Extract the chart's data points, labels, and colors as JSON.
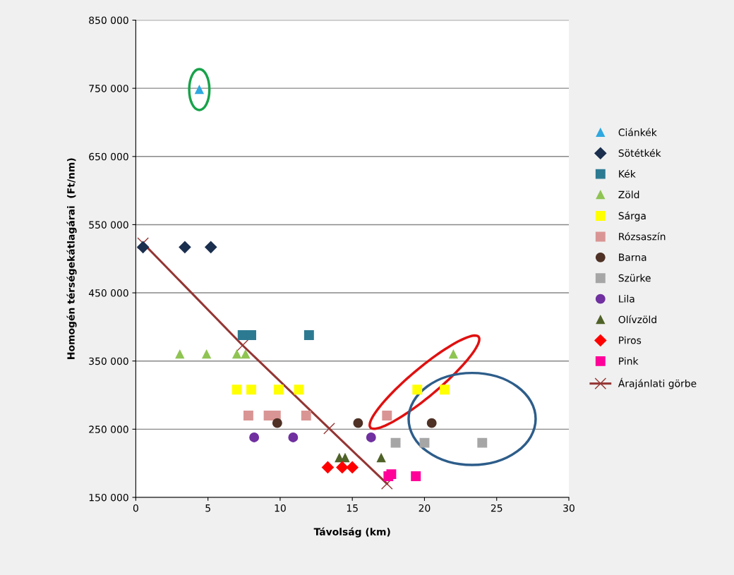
{
  "chart_data": {
    "type": "scatter",
    "xlabel": "Távolság (km)",
    "ylabel": "Homogén térségekátlagárai  (Ft/nm)",
    "xlim": [
      0,
      30
    ],
    "xticks": [
      0,
      5,
      10,
      15,
      20,
      25,
      30
    ],
    "ylim": [
      150000,
      850000
    ],
    "yticks": [
      {
        "value": 150000,
        "label": "150 000"
      },
      {
        "value": 250000,
        "label": "250 000"
      },
      {
        "value": 350000,
        "label": "350 000"
      },
      {
        "value": 450000,
        "label": "450 000"
      },
      {
        "value": 550000,
        "label": "550 000"
      },
      {
        "value": 650000,
        "label": "650 000"
      },
      {
        "value": 750000,
        "label": "750 000"
      },
      {
        "value": 850000,
        "label": "850 000"
      }
    ],
    "grid": "y",
    "legend": "right",
    "series": [
      {
        "name": "Ciánkék",
        "color": "#2ea8e0",
        "marker": "triangle",
        "x": [
          4.4
        ],
        "values": [
          748000
        ]
      },
      {
        "name": "Sötétkék",
        "color": "#1b2f4f",
        "marker": "diamond",
        "x": [
          0.5,
          3.4,
          5.2
        ],
        "values": [
          517000,
          517000,
          517000
        ]
      },
      {
        "name": "Kék",
        "color": "#2c7a92",
        "marker": "square",
        "x": [
          7.4,
          8.0,
          12.0
        ],
        "values": [
          388000,
          388000,
          388000
        ]
      },
      {
        "name": "Zöld",
        "color": "#8fc453",
        "marker": "triangle",
        "x": [
          3.05,
          4.9,
          7.0,
          7.6,
          22.0
        ],
        "values": [
          360000,
          360000,
          360000,
          360000,
          360000
        ]
      },
      {
        "name": "Sárga",
        "color": "#ffff00",
        "marker": "square",
        "x": [
          7.0,
          8.0,
          9.9,
          11.3,
          19.5,
          21.4
        ],
        "values": [
          308000,
          308000,
          308000,
          308000,
          308000,
          308000
        ]
      },
      {
        "name": "Rózsaszín",
        "color": "#d99594",
        "marker": "square",
        "x": [
          7.8,
          9.2,
          9.7,
          11.8,
          17.4
        ],
        "values": [
          270000,
          270000,
          270000,
          270000,
          270000
        ]
      },
      {
        "name": "Barna",
        "color": "#4f3126",
        "marker": "circle",
        "x": [
          9.8,
          15.4,
          20.5
        ],
        "values": [
          259000,
          259000,
          259000
        ]
      },
      {
        "name": "Szürke",
        "color": "#a6a6a6",
        "marker": "square",
        "x": [
          18.0,
          20.0,
          24.0
        ],
        "values": [
          230000,
          230000,
          230000
        ]
      },
      {
        "name": "Lila",
        "color": "#7030a0",
        "marker": "circle",
        "x": [
          8.2,
          10.9,
          16.3
        ],
        "values": [
          238000,
          238000,
          238000
        ]
      },
      {
        "name": "Olívzöld",
        "color": "#4f6228",
        "marker": "triangle",
        "x": [
          14.1,
          14.5,
          17.0
        ],
        "values": [
          208000,
          208000,
          208000
        ]
      },
      {
        "name": "Piros",
        "color": "#ff0000",
        "marker": "diamond",
        "x": [
          13.3,
          14.3,
          15.0
        ],
        "values": [
          194000,
          194000,
          194000
        ]
      },
      {
        "name": "Pink",
        "color": "#ff0099",
        "marker": "square",
        "x": [
          17.5,
          17.7,
          19.4
        ],
        "values": [
          181000,
          184000,
          181000
        ]
      },
      {
        "name": "Árajánlati görbe",
        "type": "line",
        "color": "#943634",
        "marker": "cross",
        "x": [
          0.5,
          7.4,
          13.4,
          17.4
        ],
        "values": [
          523000,
          373000,
          251000,
          170000
        ]
      }
    ]
  }
}
